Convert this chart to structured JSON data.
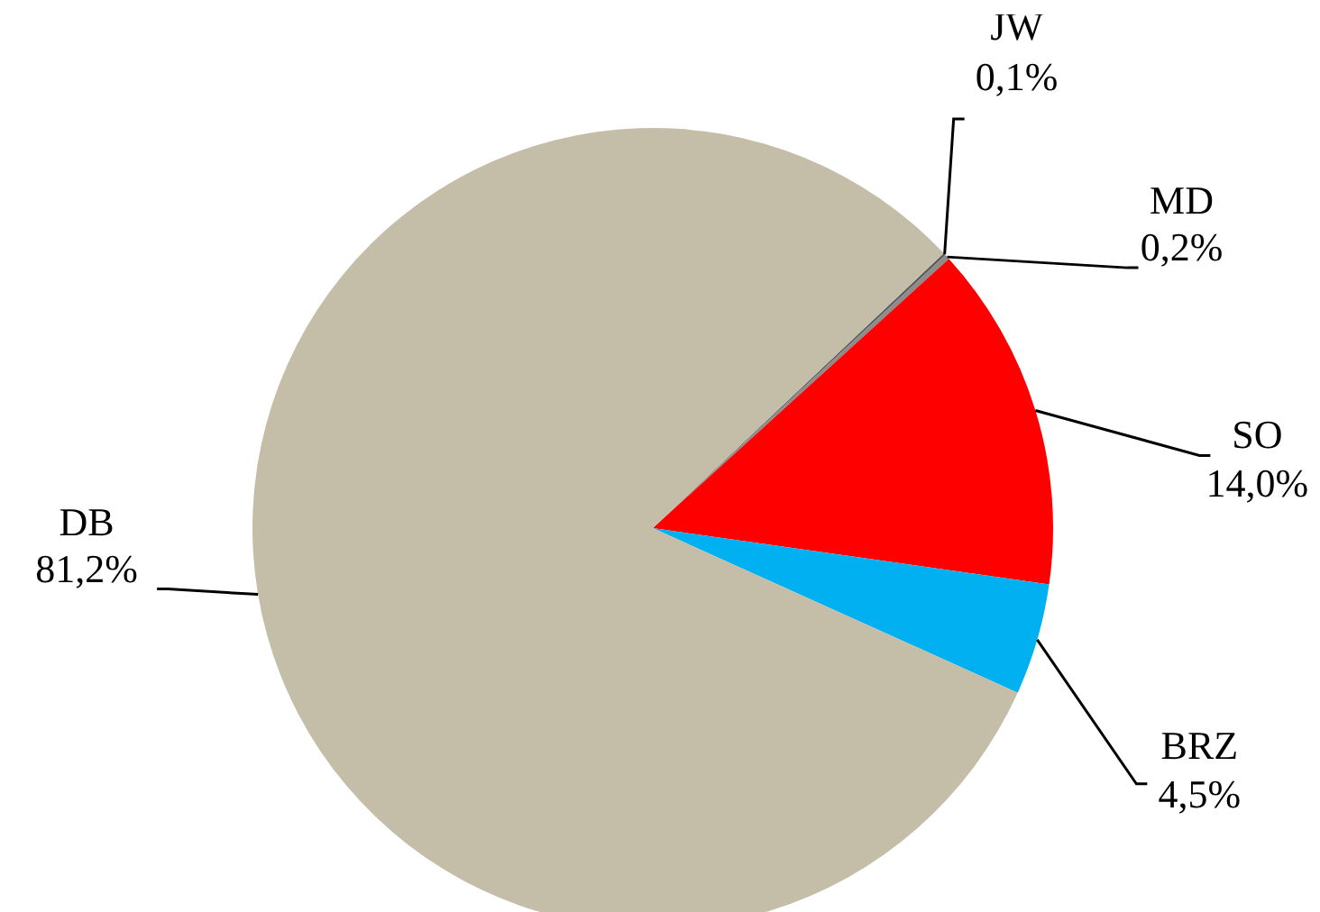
{
  "chart_data": {
    "type": "pie",
    "categories": [
      "JW",
      "MD",
      "SO",
      "BRZ",
      "DB"
    ],
    "values": [
      0.1,
      0.2,
      14.0,
      4.5,
      81.2
    ],
    "value_labels": [
      "0,1%",
      "0,2%",
      "14,0%",
      "4,5%",
      "81,2%"
    ],
    "colors": [
      "#5a5a5a",
      "#8c8c8c",
      "#ff0000",
      "#00b0f0",
      "#c4bda8"
    ],
    "legend": false
  }
}
